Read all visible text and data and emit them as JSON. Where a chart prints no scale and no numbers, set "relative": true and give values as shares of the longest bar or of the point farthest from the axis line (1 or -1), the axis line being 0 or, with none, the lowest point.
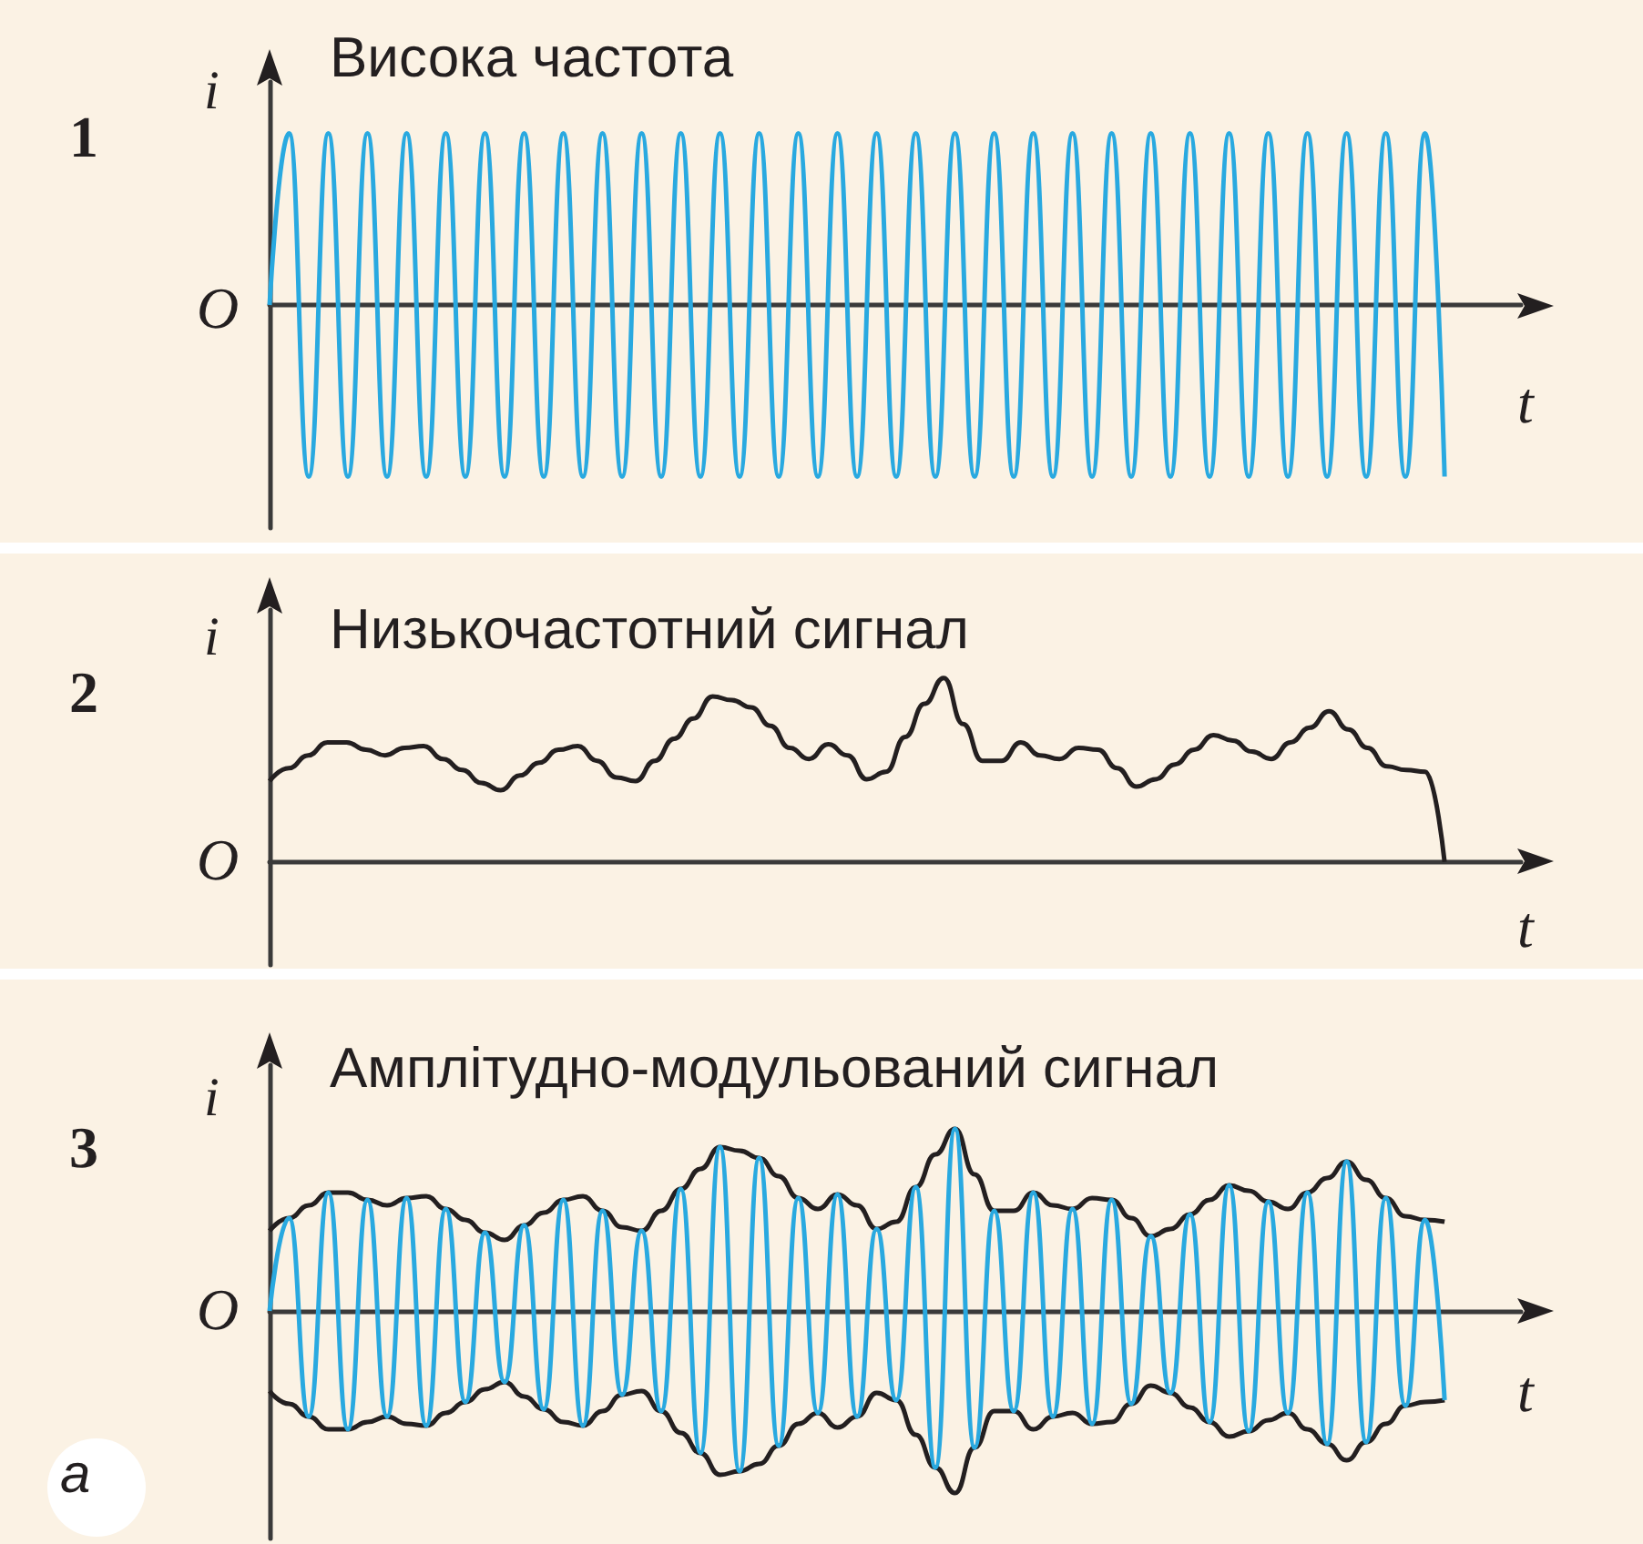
{
  "chart_data": [
    {
      "type": "line",
      "title": "Висока частота",
      "xlabel": "t",
      "ylabel": "i",
      "annotations": [
        "1",
        "O"
      ],
      "relative": true,
      "grid": false,
      "marker": "none",
      "categories": [
        null,
        null,
        null,
        null,
        null,
        null,
        null,
        null,
        null,
        null,
        null,
        null,
        null,
        null,
        null,
        null,
        null,
        null,
        null,
        null,
        null,
        null,
        null,
        null,
        null,
        null,
        null,
        null,
        null,
        null,
        null,
        null,
        null,
        null,
        null,
        null,
        null,
        null,
        null,
        null,
        null,
        null,
        null,
        null,
        null,
        null,
        null,
        null,
        null,
        null,
        null,
        null,
        null,
        null,
        null,
        null,
        null,
        null,
        null,
        null,
        null
      ],
      "series": [
        {
          "color": "#29a9e0",
          "values": [
            0,
            1,
            -1,
            1,
            -1,
            1,
            -1,
            1,
            -1,
            1,
            -1,
            1,
            -1,
            1,
            -1,
            1,
            -1,
            1,
            -1,
            1,
            -1,
            1,
            -1,
            1,
            -1,
            1,
            -1,
            1,
            -1,
            1,
            -1,
            1,
            -1,
            1,
            -1,
            1,
            -1,
            1,
            -1,
            1,
            -1,
            1,
            -1,
            1,
            -1,
            1,
            -1,
            1,
            -1,
            1,
            -1,
            1,
            -1,
            1,
            -1,
            1,
            -1,
            1,
            -1,
            1,
            -1
          ]
        }
      ]
    },
    {
      "type": "line",
      "title": "Низькочастотний сигнал",
      "xlabel": "t",
      "ylabel": "i",
      "annotations": [
        "2",
        "O"
      ],
      "relative": true,
      "grid": false,
      "marker": "none",
      "categories": [
        null,
        null,
        null,
        null,
        null,
        null,
        null,
        null,
        null,
        null,
        null,
        null,
        null,
        null,
        null,
        null,
        null,
        null,
        null,
        null,
        null,
        null,
        null,
        null,
        null,
        null,
        null,
        null,
        null,
        null,
        null,
        null,
        null,
        null,
        null,
        null,
        null,
        null,
        null,
        null,
        null,
        null,
        null,
        null,
        null,
        null,
        null,
        null,
        null,
        null,
        null,
        null,
        null,
        null,
        null,
        null,
        null,
        null,
        null,
        null,
        null,
        null
      ],
      "series": [
        {
          "color": "#231f20",
          "values": [
            0.44,
            0.51,
            0.58,
            0.65,
            0.65,
            0.61,
            0.58,
            0.62,
            0.63,
            0.56,
            0.5,
            0.43,
            0.39,
            0.47,
            0.54,
            0.61,
            0.63,
            0.55,
            0.46,
            0.44,
            0.55,
            0.67,
            0.78,
            0.9,
            0.88,
            0.84,
            0.74,
            0.62,
            0.56,
            0.64,
            0.58,
            0.45,
            0.49,
            0.68,
            0.86,
            1,
            0.75,
            0.55,
            0.55,
            0.65,
            0.58,
            0.56,
            0.62,
            0.61,
            0.51,
            0.41,
            0.45,
            0.53,
            0.61,
            0.69,
            0.66,
            0.6,
            0.56,
            0.65,
            0.73,
            0.82,
            0.72,
            0.62,
            0.52,
            0.5,
            0.49,
            0
          ]
        }
      ]
    },
    {
      "type": "line",
      "title": "Амплітудно-модульований сигнал",
      "xlabel": "t",
      "ylabel": "i",
      "annotations": [
        "3",
        "O",
        "a"
      ],
      "relative": true,
      "grid": false,
      "marker": "none",
      "categories": [
        null,
        null,
        null,
        null,
        null,
        null,
        null,
        null,
        null,
        null,
        null,
        null,
        null,
        null,
        null,
        null,
        null,
        null,
        null,
        null,
        null,
        null,
        null,
        null,
        null,
        null,
        null,
        null,
        null,
        null,
        null,
        null,
        null,
        null,
        null,
        null,
        null,
        null,
        null,
        null,
        null,
        null,
        null,
        null,
        null,
        null,
        null,
        null,
        null,
        null,
        null,
        null,
        null,
        null,
        null,
        null,
        null,
        null,
        null,
        null,
        null
      ],
      "series": [
        {
          "color": "#29a9e0",
          "values": [
            0,
            0.51,
            -0.58,
            0.65,
            -0.65,
            0.61,
            -0.58,
            0.62,
            -0.63,
            0.56,
            -0.5,
            0.43,
            -0.39,
            0.47,
            -0.54,
            0.61,
            -0.63,
            0.55,
            -0.46,
            0.44,
            -0.55,
            0.67,
            -0.78,
            0.9,
            -0.88,
            0.84,
            -0.74,
            0.62,
            -0.56,
            0.64,
            -0.58,
            0.45,
            -0.49,
            0.68,
            -0.86,
            1,
            -0.75,
            0.55,
            -0.55,
            0.65,
            -0.58,
            0.56,
            -0.62,
            0.61,
            -0.51,
            0.41,
            -0.45,
            0.53,
            -0.61,
            0.69,
            -0.66,
            0.6,
            -0.56,
            0.65,
            -0.73,
            0.82,
            -0.72,
            0.62,
            -0.52,
            0.5,
            -0.49
          ]
        },
        {
          "color": "#231f20",
          "values": [
            0.44,
            0.51,
            0.58,
            0.65,
            0.65,
            0.61,
            0.58,
            0.62,
            0.63,
            0.56,
            0.5,
            0.43,
            0.39,
            0.47,
            0.54,
            0.61,
            0.63,
            0.55,
            0.46,
            0.44,
            0.55,
            0.67,
            0.78,
            0.9,
            0.88,
            0.84,
            0.74,
            0.62,
            0.56,
            0.64,
            0.58,
            0.45,
            0.49,
            0.68,
            0.86,
            1,
            0.75,
            0.55,
            0.55,
            0.65,
            0.58,
            0.56,
            0.62,
            0.61,
            0.51,
            0.41,
            0.45,
            0.53,
            0.61,
            0.69,
            0.66,
            0.6,
            0.56,
            0.65,
            0.73,
            0.82,
            0.72,
            0.62,
            0.52,
            0.5,
            0.49
          ]
        },
        {
          "color": "#231f20",
          "values": [
            -0.44,
            -0.51,
            -0.58,
            -0.65,
            -0.65,
            -0.61,
            -0.58,
            -0.62,
            -0.63,
            -0.56,
            -0.5,
            -0.43,
            -0.39,
            -0.47,
            -0.54,
            -0.61,
            -0.63,
            -0.55,
            -0.46,
            -0.44,
            -0.55,
            -0.67,
            -0.78,
            -0.9,
            -0.88,
            -0.84,
            -0.74,
            -0.62,
            -0.56,
            -0.64,
            -0.58,
            -0.45,
            -0.49,
            -0.68,
            -0.86,
            -1,
            -0.75,
            -0.55,
            -0.55,
            -0.65,
            -0.58,
            -0.56,
            -0.62,
            -0.61,
            -0.51,
            -0.41,
            -0.45,
            -0.53,
            -0.61,
            -0.69,
            -0.66,
            -0.6,
            -0.56,
            -0.65,
            -0.73,
            -0.82,
            -0.72,
            -0.62,
            -0.52,
            -0.5,
            -0.49
          ]
        }
      ]
    }
  ]
}
